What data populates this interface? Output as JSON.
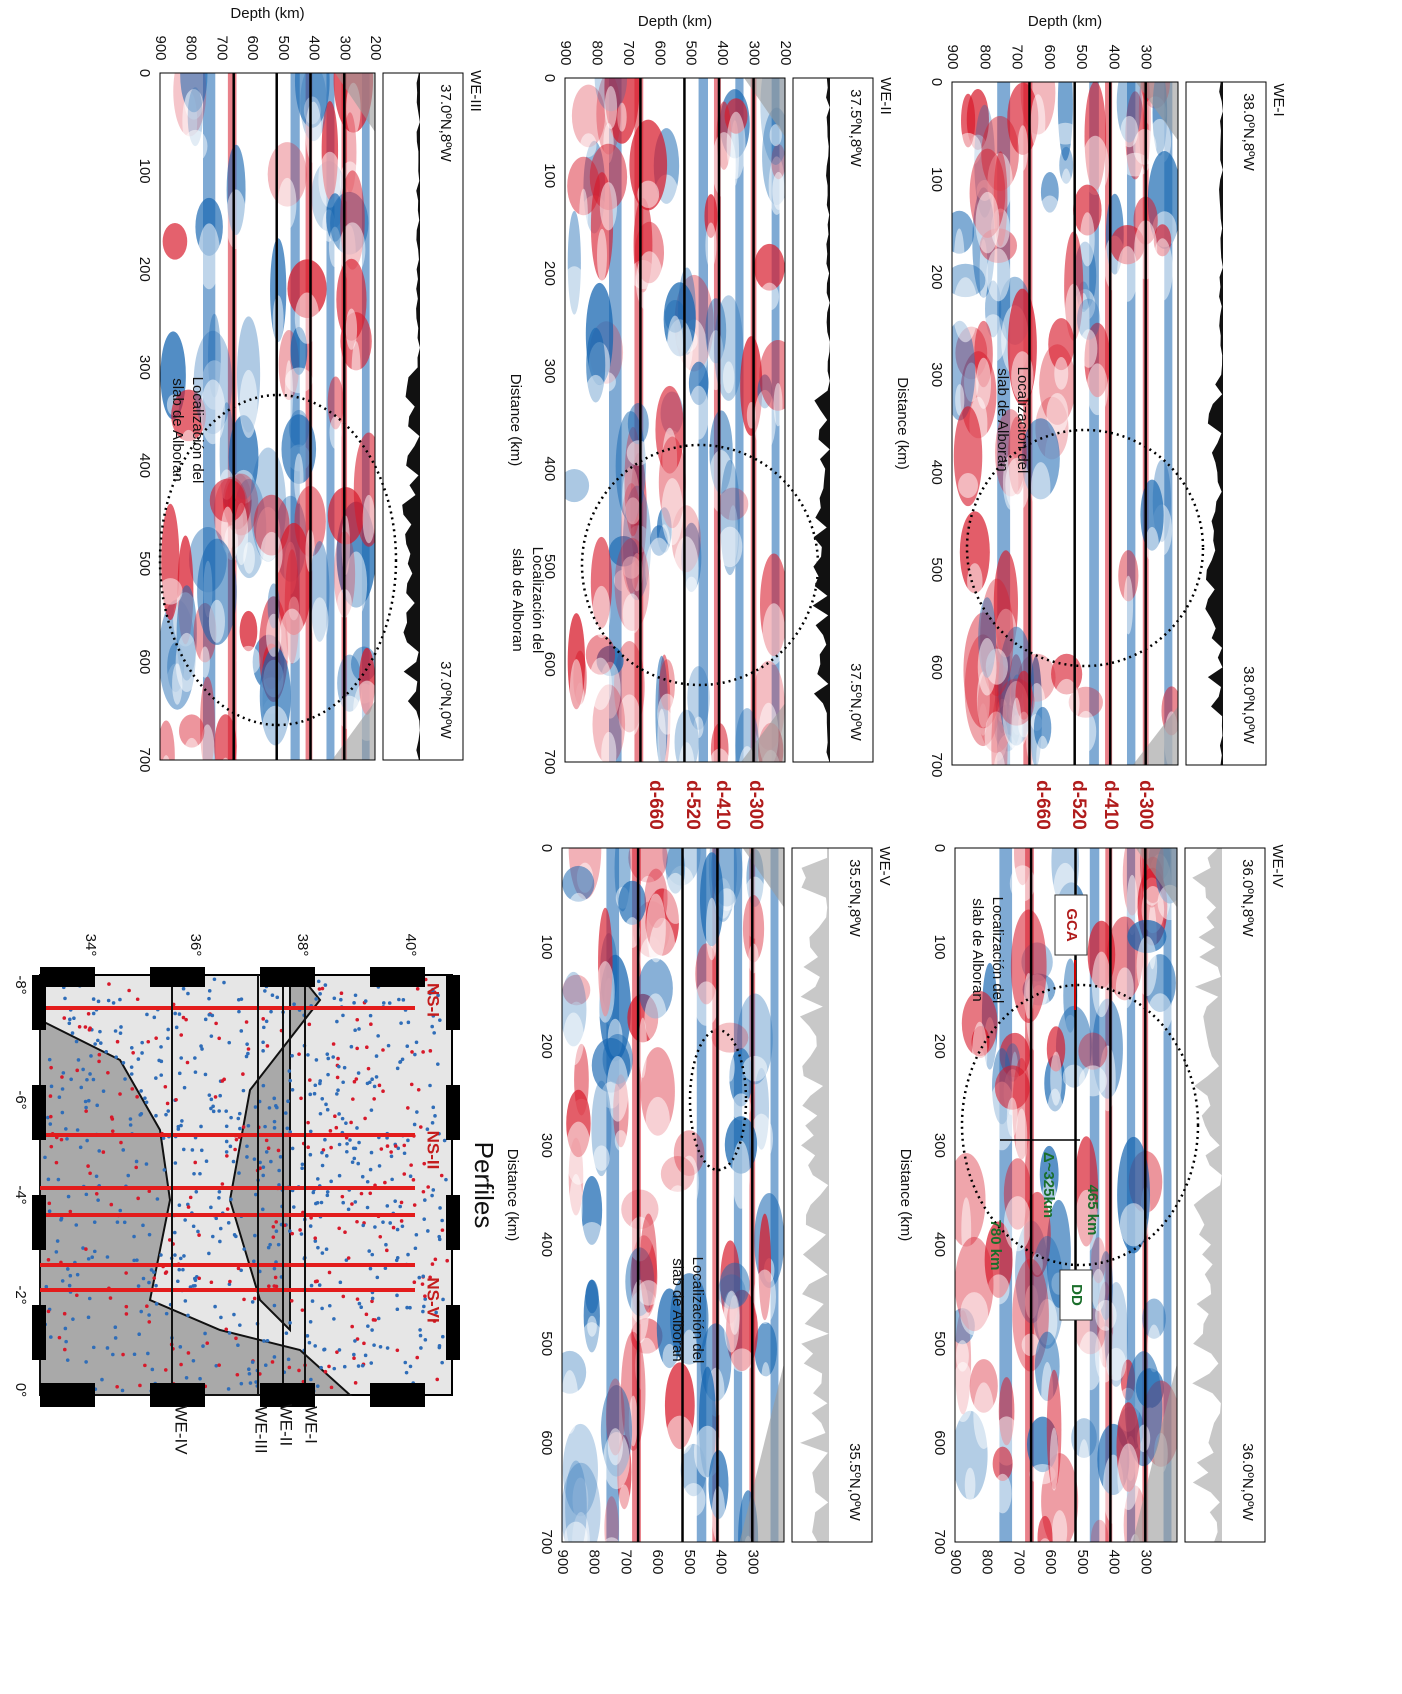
{
  "depth_axis_title": "Depth (km)",
  "distance_axis_title": "Distance (km)",
  "depth_ticks": [
    900,
    800,
    700,
    600,
    500,
    400,
    300,
    200
  ],
  "distance_ticks": [
    0,
    100,
    200,
    300,
    400,
    500,
    600,
    700
  ],
  "discontinuities": [
    "d-300",
    "d-410",
    "d-520",
    "d-660"
  ],
  "annotation": [
    "Localización del",
    "slab de Alboran"
  ],
  "panels": [
    {
      "name": "WE-I",
      "start": "38.0ºN,8ºW",
      "end": "38.0ºN,0ºW"
    },
    {
      "name": "WE-II",
      "start": "37.5ºN,8ºW",
      "end": "37.5ºN,0ºW"
    },
    {
      "name": "WE-III",
      "start": "37.0ºN,8ºW",
      "end": "37.0ºN,0ºW"
    },
    {
      "name": "WE-IV",
      "start": "36.0ºN,8ºW",
      "end": "36.0ºN,0ºW"
    },
    {
      "name": "WE-V",
      "start": "35.5ºN,8ºW",
      "end": "35.5ºN,0ºW"
    }
  ],
  "we4_annotations": {
    "gca": "GCA",
    "dd": "DD",
    "d465": "465 km",
    "d780": "780 km",
    "delta": "Δ~325km"
  },
  "map": {
    "title": "Perfiles",
    "lat_labels": [
      "34°",
      "36°",
      "38°",
      "40°"
    ],
    "lon_labels": [
      "-8°",
      "-6°",
      "-4°",
      "-2°",
      "0°"
    ],
    "ns_labels": [
      "NS-I",
      "NS-II",
      "NS-VI"
    ],
    "we_labels": [
      "WE-I",
      "WE-II",
      "WE-III",
      "WE-IV"
    ]
  }
}
